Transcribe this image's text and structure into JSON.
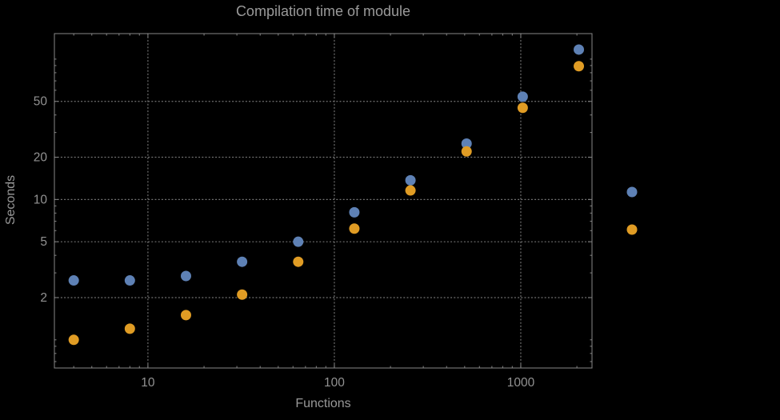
{
  "chart_data": {
    "type": "scatter",
    "title": "Compilation time of module",
    "xlabel": "Functions",
    "ylabel": "Seconds",
    "xscale": "log",
    "yscale": "log",
    "xlim": [
      3.15,
      2410
    ],
    "ylim": [
      0.63,
      152
    ],
    "x_ticks": [
      10,
      100,
      1000
    ],
    "x_tick_labels": [
      "10",
      "100",
      "1000"
    ],
    "y_ticks": [
      2,
      5,
      10,
      20,
      50
    ],
    "y_tick_labels": [
      "2",
      "5",
      "10",
      "20",
      "50"
    ],
    "grid": true,
    "grid_style": "dotted",
    "x": [
      4,
      8,
      16,
      32,
      64,
      128,
      256,
      512,
      1024,
      2048
    ],
    "series": [
      {
        "name": "blue",
        "color": "#5e81b5",
        "values": [
          2.65,
          2.65,
          2.85,
          3.6,
          5.0,
          8.1,
          13.7,
          25,
          54,
          117
        ]
      },
      {
        "name": "orange",
        "color": "#e09c24",
        "values": [
          1.0,
          1.2,
          1.5,
          2.1,
          3.6,
          6.2,
          11.6,
          22,
          45,
          89
        ]
      }
    ],
    "legend": {
      "position": "right-of-frame",
      "markers": [
        {
          "series": "blue",
          "color": "#5e81b5"
        },
        {
          "series": "orange",
          "color": "#e09c24"
        }
      ]
    },
    "colors": {
      "background": "#000000",
      "frame": "#878787",
      "grid": "#747474",
      "tick_text": "#929292",
      "label_text": "#989898",
      "title_text": "#9a9a9a"
    }
  }
}
